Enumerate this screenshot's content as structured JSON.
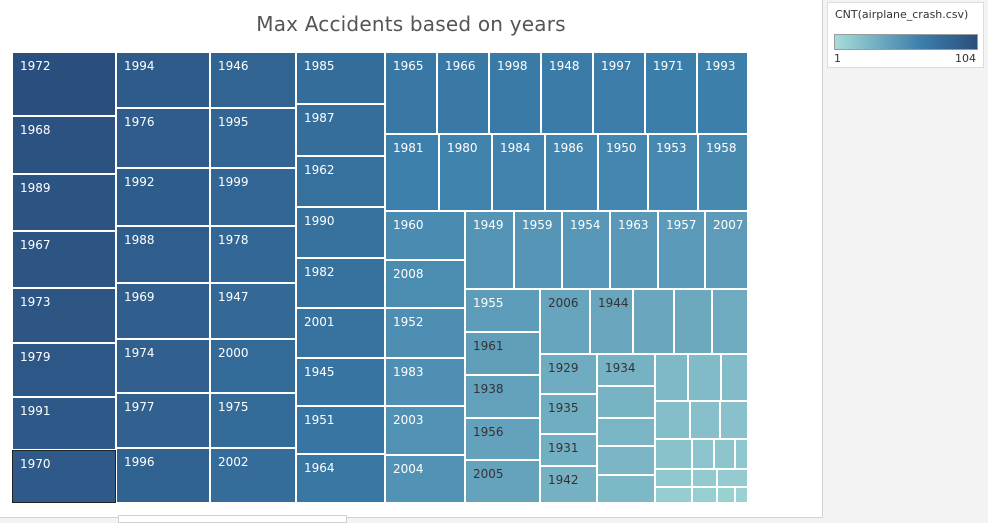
{
  "chart_data": {
    "type": "treemap",
    "title": "Max Accidents based on years",
    "measure": "CNT(airplane_crash.csv)",
    "color_range": [
      1,
      104
    ],
    "color_scale": [
      "#a7dcd8",
      "#3c7fab",
      "#2a4f7e"
    ],
    "selected_label": "1970",
    "items": [
      {
        "label": "1972",
        "value": 104
      },
      {
        "label": "1968",
        "value": 101
      },
      {
        "label": "1989",
        "value": 100
      },
      {
        "label": "1967",
        "value": 99
      },
      {
        "label": "1973",
        "value": 98
      },
      {
        "label": "1979",
        "value": 97
      },
      {
        "label": "1991",
        "value": 96
      },
      {
        "label": "1970",
        "value": 95
      },
      {
        "label": "1994",
        "value": 94
      },
      {
        "label": "1976",
        "value": 93
      },
      {
        "label": "1992",
        "value": 92
      },
      {
        "label": "1988",
        "value": 91
      },
      {
        "label": "1969",
        "value": 90
      },
      {
        "label": "1974",
        "value": 89
      },
      {
        "label": "1977",
        "value": 88
      },
      {
        "label": "1996",
        "value": 87
      },
      {
        "label": "1946",
        "value": 86
      },
      {
        "label": "1995",
        "value": 85
      },
      {
        "label": "1999",
        "value": 84
      },
      {
        "label": "1978",
        "value": 83
      },
      {
        "label": "1947",
        "value": 82
      },
      {
        "label": "2000",
        "value": 81
      },
      {
        "label": "1975",
        "value": 80
      },
      {
        "label": "2002",
        "value": 79
      },
      {
        "label": "1985",
        "value": 78
      },
      {
        "label": "1987",
        "value": 77
      },
      {
        "label": "1962",
        "value": 76
      },
      {
        "label": "1990",
        "value": 75
      },
      {
        "label": "1982",
        "value": 74
      },
      {
        "label": "2001",
        "value": 73
      },
      {
        "label": "1945",
        "value": 72
      },
      {
        "label": "1951",
        "value": 71
      },
      {
        "label": "1964",
        "value": 70
      },
      {
        "label": "1965",
        "value": 69
      },
      {
        "label": "1966",
        "value": 68
      },
      {
        "label": "1998",
        "value": 67
      },
      {
        "label": "1948",
        "value": 66
      },
      {
        "label": "1997",
        "value": 65
      },
      {
        "label": "1971",
        "value": 64
      },
      {
        "label": "1993",
        "value": 63
      },
      {
        "label": "1981",
        "value": 62
      },
      {
        "label": "1980",
        "value": 61
      },
      {
        "label": "1984",
        "value": 60
      },
      {
        "label": "1986",
        "value": 59
      },
      {
        "label": "1950",
        "value": 58
      },
      {
        "label": "1953",
        "value": 57
      },
      {
        "label": "1958",
        "value": 56
      },
      {
        "label": "1960",
        "value": 55
      },
      {
        "label": "2008",
        "value": 54
      },
      {
        "label": "1952",
        "value": 53
      },
      {
        "label": "1983",
        "value": 52
      },
      {
        "label": "2003",
        "value": 51
      },
      {
        "label": "2004",
        "value": 50
      },
      {
        "label": "1949",
        "value": 49
      },
      {
        "label": "1959",
        "value": 48
      },
      {
        "label": "1954",
        "value": 47
      },
      {
        "label": "1963",
        "value": 46
      },
      {
        "label": "1957",
        "value": 45
      },
      {
        "label": "2007",
        "value": 44
      },
      {
        "label": "1955",
        "value": 43
      },
      {
        "label": "1961",
        "value": 42
      },
      {
        "label": "1938",
        "value": 41
      },
      {
        "label": "1956",
        "value": 40
      },
      {
        "label": "2005",
        "value": 39
      },
      {
        "label": "2006",
        "value": 38
      },
      {
        "label": "1944",
        "value": 37
      },
      {
        "label": "",
        "value": 36
      },
      {
        "label": "",
        "value": 35
      },
      {
        "label": "",
        "value": 34
      },
      {
        "label": "1929",
        "value": 33
      },
      {
        "label": "1935",
        "value": 32
      },
      {
        "label": "1931",
        "value": 31
      },
      {
        "label": "1942",
        "value": 30
      },
      {
        "label": "1934",
        "value": 29
      },
      {
        "label": "",
        "value": 28
      },
      {
        "label": "",
        "value": 27
      },
      {
        "label": "",
        "value": 26
      },
      {
        "label": "",
        "value": 25
      },
      {
        "label": "",
        "value": 24
      },
      {
        "label": "",
        "value": 23
      },
      {
        "label": "",
        "value": 22
      },
      {
        "label": "",
        "value": 21
      },
      {
        "label": "",
        "value": 20
      },
      {
        "label": "",
        "value": 19
      },
      {
        "label": "",
        "value": 18
      },
      {
        "label": "",
        "value": 17
      },
      {
        "label": "",
        "value": 16
      },
      {
        "label": "",
        "value": 15
      },
      {
        "label": "",
        "value": 14
      },
      {
        "label": "",
        "value": 13
      },
      {
        "label": "",
        "value": 12
      },
      {
        "label": "",
        "value": 11
      },
      {
        "label": "",
        "value": 10
      },
      {
        "label": "",
        "value": 9
      },
      {
        "label": "",
        "value": 8
      },
      {
        "label": "",
        "value": 7
      },
      {
        "label": "",
        "value": 6
      },
      {
        "label": "",
        "value": 5
      },
      {
        "label": "",
        "value": 4
      },
      {
        "label": "",
        "value": 3
      },
      {
        "label": "",
        "value": 2
      },
      {
        "label": "",
        "value": 1
      }
    ]
  },
  "legend": {
    "title": "CNT(airplane_crash.csv)",
    "min_label": "1",
    "max_label": "104"
  }
}
